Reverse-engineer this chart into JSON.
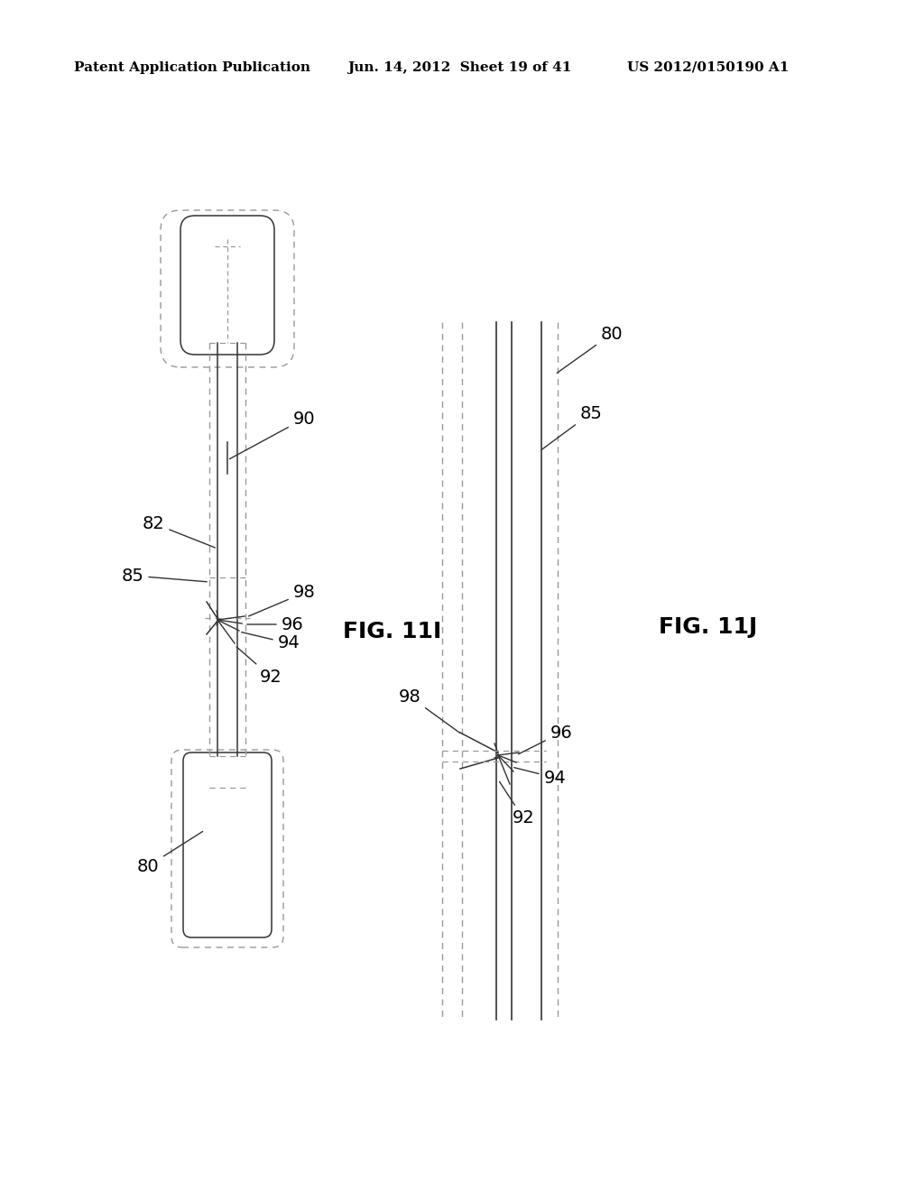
{
  "header_left": "Patent Application Publication",
  "header_center": "Jun. 14, 2012  Sheet 19 of 41",
  "header_right": "US 2012/0150190 A1",
  "fig1_label": "FIG. 11I",
  "fig2_label": "FIG. 11J",
  "bg_color": "#ffffff",
  "line_color": "#333333",
  "dashed_color": "#999999",
  "text_color": "#000000",
  "header_font_size": 11,
  "label_font_size": 14,
  "fig_label_font_size": 18
}
